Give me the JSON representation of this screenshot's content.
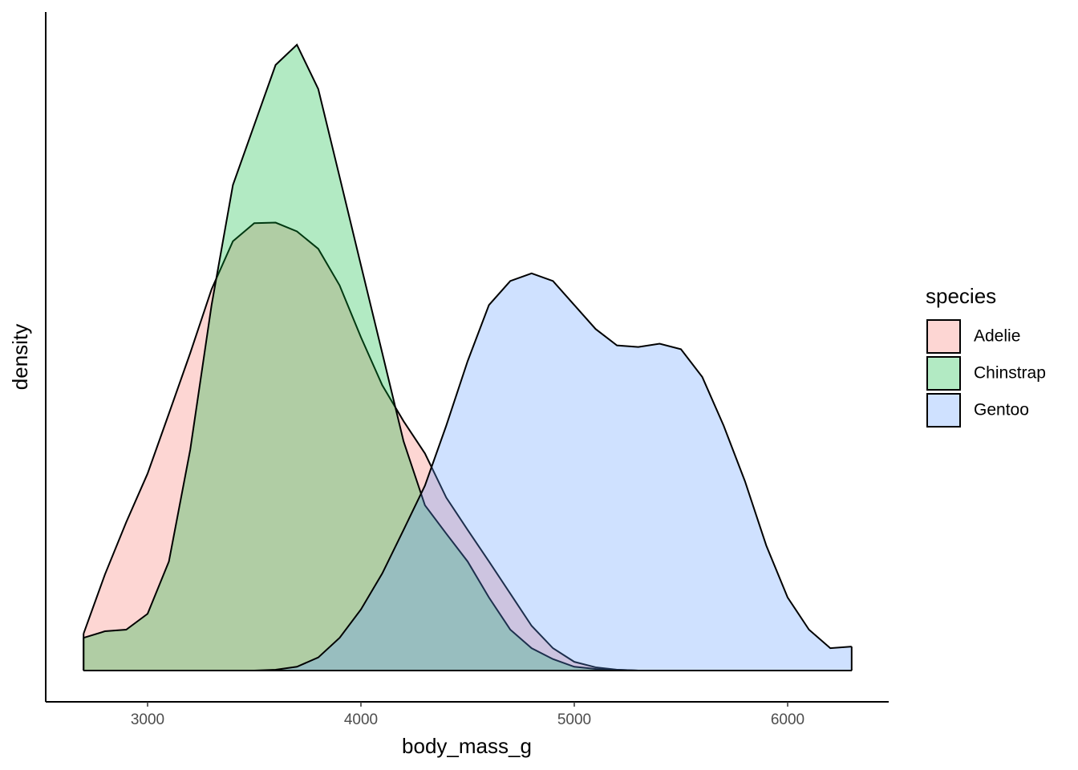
{
  "chart_data": {
    "type": "density",
    "x_label": "body_mass_g",
    "y_label": "density",
    "x": [
      2700,
      2800,
      2900,
      3000,
      3100,
      3200,
      3300,
      3400,
      3500,
      3600,
      3700,
      3800,
      3900,
      4000,
      4100,
      4200,
      4300,
      4400,
      4500,
      4600,
      4700,
      4800,
      4900,
      5000,
      5100,
      5200,
      5300,
      5400,
      5500,
      5600,
      5700,
      5800,
      5900,
      6000,
      6100,
      6200,
      6300
    ],
    "series": [
      {
        "name": "Adelie",
        "color": "#F8766D",
        "values": [
          6.76e-05,
          0.000176,
          0.000272,
          0.000361,
          0.000471,
          0.000582,
          0.000699,
          0.000787,
          0.00082,
          0.000821,
          0.000805,
          0.000773,
          0.000706,
          0.000611,
          0.000523,
          0.000457,
          0.000398,
          0.000317,
          0.000258,
          0.0002,
          0.000141,
          8.2e-05,
          4.1e-05,
          1.6e-05,
          6e-06,
          1.5e-06,
          0,
          0,
          0,
          0,
          0,
          0,
          0,
          0,
          0,
          0,
          0
        ]
      },
      {
        "name": "Chinstrap",
        "color": "#00BA38",
        "values": [
          6e-05,
          7.2e-05,
          7.5e-05,
          0.000104,
          0.0002,
          0.000405,
          0.00067,
          0.00089,
          0.001,
          0.00111,
          0.001147,
          0.001066,
          0.000905,
          0.000743,
          0.000582,
          0.00042,
          0.000303,
          0.000251,
          0.0002,
          0.000134,
          7.5e-05,
          4.1e-05,
          2.1e-05,
          7e-06,
          3e-06,
          1.5e-06,
          0,
          0,
          0,
          0,
          0,
          0,
          0,
          0,
          0,
          0,
          0
        ]
      },
      {
        "name": "Gentoo",
        "color": "#619CFF",
        "values": [
          0,
          0,
          0,
          0,
          0,
          0,
          0,
          0,
          0,
          1.5e-06,
          7e-06,
          2.4e-05,
          6e-05,
          0.000112,
          0.000178,
          0.000258,
          0.000339,
          0.000449,
          0.000567,
          0.00067,
          0.000714,
          0.000728,
          0.000714,
          0.00067,
          0.000626,
          0.000596,
          0.000593,
          0.000599,
          0.000589,
          0.000538,
          0.000449,
          0.000347,
          0.000229,
          0.000134,
          7.5e-05,
          4.1e-05,
          4.4e-05
        ]
      }
    ],
    "fill_alpha": 0.3,
    "legend_title": "species",
    "legend_position": "right",
    "xlim": [
      2522.6,
      6473.7
    ],
    "xticks": [
      3000,
      4000,
      5000,
      6000
    ],
    "ylim": [
      -5.73e-05,
      0.001207
    ]
  }
}
